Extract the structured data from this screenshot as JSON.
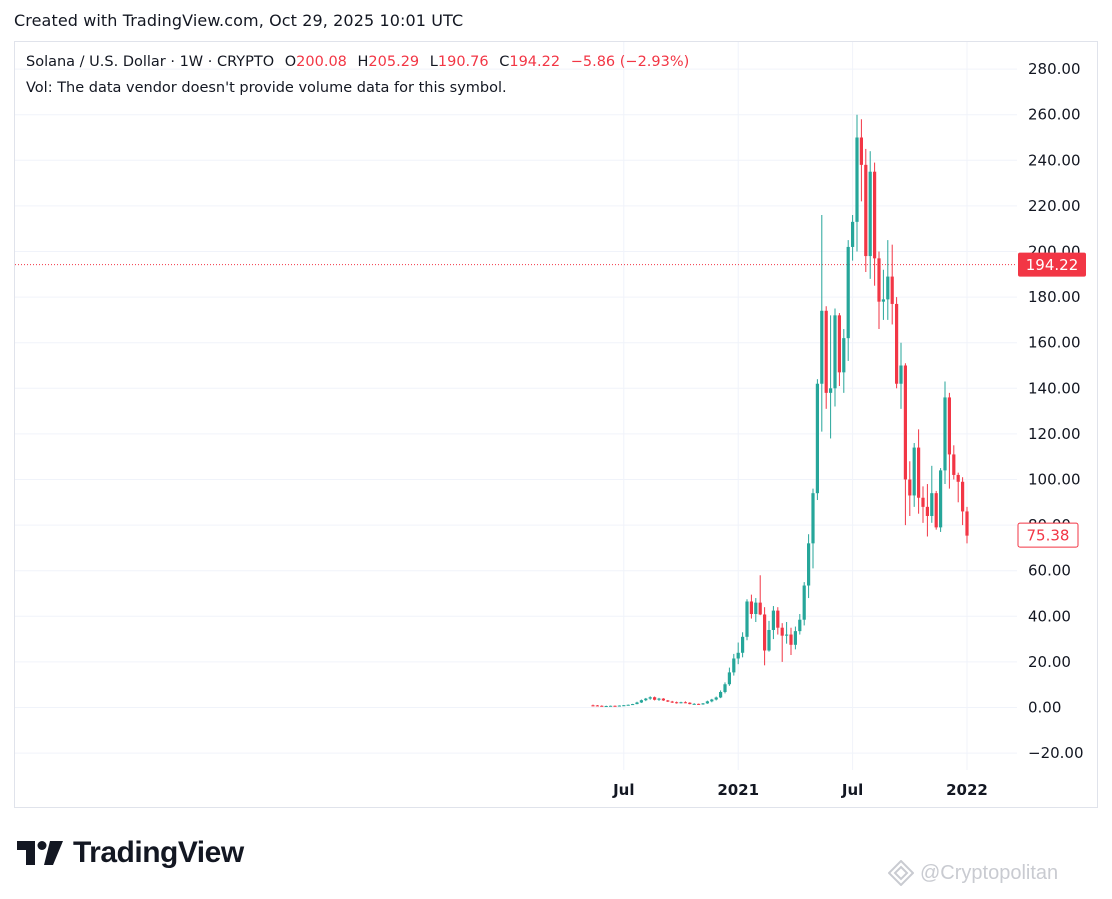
{
  "header": {
    "text": "Created with TradingView.com, Oct 29, 2025 10:01 UTC"
  },
  "legend": {
    "symbol": "Solana / U.S. Dollar · 1W · CRYPTO",
    "o_label": "O",
    "o_value": "200.08",
    "h_label": "H",
    "h_value": "205.29",
    "l_label": "L",
    "l_value": "190.76",
    "c_label": "C",
    "c_value": "194.22",
    "change": "−5.86 (−2.93%)",
    "vol_note": "Vol: The data vendor doesn't provide volume data for this symbol."
  },
  "price_badges": {
    "current": "194.22",
    "last": "75.38"
  },
  "branding": {
    "logo_text": "TradingView",
    "watermark": "@Cryptopolitan"
  },
  "colors": {
    "up": "#26a69a",
    "down": "#f23645",
    "grid": "#f0f3fa",
    "text": "#131722",
    "badge_red": "#f23645"
  },
  "chart_data": {
    "type": "candlestick",
    "title": "Solana / U.S. Dollar · 1W · CRYPTO",
    "y_ticks": [
      "280.00",
      "260.00",
      "240.00",
      "220.00",
      "200.00",
      "180.00",
      "160.00",
      "140.00",
      "120.00",
      "100.00",
      "80.00",
      "60.00",
      "40.00",
      "20.00",
      "0.00",
      "−20.00"
    ],
    "y_tick_values": [
      280,
      260,
      240,
      220,
      200,
      180,
      160,
      140,
      120,
      100,
      80,
      60,
      40,
      20,
      0,
      -20
    ],
    "ylim": [
      -20,
      280
    ],
    "x_ticks": [
      "Jul",
      "2021",
      "Jul",
      "2022"
    ],
    "x_tick_weeks": [
      7,
      33,
      59,
      85
    ],
    "current_price_line": 194.22,
    "last_price": 75.38,
    "grid": true,
    "candles": [
      {
        "o": 0.95,
        "h": 1.25,
        "l": 0.55,
        "c": 0.9
      },
      {
        "o": 0.9,
        "h": 1.1,
        "l": 0.65,
        "c": 0.75
      },
      {
        "o": 0.75,
        "h": 0.95,
        "l": 0.55,
        "c": 0.65
      },
      {
        "o": 0.65,
        "h": 0.8,
        "l": 0.5,
        "c": 0.65
      },
      {
        "o": 0.65,
        "h": 0.85,
        "l": 0.55,
        "c": 0.75
      },
      {
        "o": 0.75,
        "h": 0.9,
        "l": 0.6,
        "c": 0.7
      },
      {
        "o": 0.7,
        "h": 0.95,
        "l": 0.6,
        "c": 0.85
      },
      {
        "o": 0.85,
        "h": 1.1,
        "l": 0.8,
        "c": 1.0
      },
      {
        "o": 1.0,
        "h": 1.3,
        "l": 0.9,
        "c": 1.2
      },
      {
        "o": 1.2,
        "h": 1.6,
        "l": 1.1,
        "c": 1.5
      },
      {
        "o": 1.5,
        "h": 2.5,
        "l": 1.4,
        "c": 2.2
      },
      {
        "o": 2.2,
        "h": 3.5,
        "l": 2.0,
        "c": 3.2
      },
      {
        "o": 3.2,
        "h": 4.2,
        "l": 2.8,
        "c": 3.9
      },
      {
        "o": 3.9,
        "h": 4.9,
        "l": 3.4,
        "c": 4.5
      },
      {
        "o": 4.5,
        "h": 4.8,
        "l": 3.1,
        "c": 3.4
      },
      {
        "o": 3.4,
        "h": 4.2,
        "l": 2.9,
        "c": 3.9
      },
      {
        "o": 3.9,
        "h": 4.1,
        "l": 2.9,
        "c": 3.1
      },
      {
        "o": 3.1,
        "h": 3.3,
        "l": 2.4,
        "c": 2.6
      },
      {
        "o": 2.6,
        "h": 2.9,
        "l": 2.0,
        "c": 2.3
      },
      {
        "o": 2.3,
        "h": 2.6,
        "l": 1.7,
        "c": 1.9
      },
      {
        "o": 1.9,
        "h": 2.5,
        "l": 1.8,
        "c": 2.3
      },
      {
        "o": 2.3,
        "h": 2.7,
        "l": 1.9,
        "c": 2.1
      },
      {
        "o": 2.1,
        "h": 2.3,
        "l": 1.4,
        "c": 1.5
      },
      {
        "o": 1.5,
        "h": 1.9,
        "l": 1.3,
        "c": 1.6
      },
      {
        "o": 1.6,
        "h": 1.7,
        "l": 1.2,
        "c": 1.35
      },
      {
        "o": 1.35,
        "h": 2.0,
        "l": 1.2,
        "c": 1.8
      },
      {
        "o": 1.8,
        "h": 3.0,
        "l": 1.6,
        "c": 2.7
      },
      {
        "o": 2.7,
        "h": 3.8,
        "l": 2.3,
        "c": 3.5
      },
      {
        "o": 3.5,
        "h": 4.8,
        "l": 3.1,
        "c": 4.4
      },
      {
        "o": 4.4,
        "h": 7.5,
        "l": 4.1,
        "c": 6.8
      },
      {
        "o": 6.8,
        "h": 11.0,
        "l": 6.2,
        "c": 10.2
      },
      {
        "o": 10.2,
        "h": 17.5,
        "l": 9.5,
        "c": 15.4
      },
      {
        "o": 15.4,
        "h": 23.5,
        "l": 14.0,
        "c": 21.5
      },
      {
        "o": 21.5,
        "h": 28.5,
        "l": 19.0,
        "c": 24.0
      },
      {
        "o": 24.0,
        "h": 33.0,
        "l": 22.0,
        "c": 31.0
      },
      {
        "o": 31.0,
        "h": 47.5,
        "l": 29.5,
        "c": 46.5
      },
      {
        "o": 46.5,
        "h": 49.5,
        "l": 39.0,
        "c": 41.0
      },
      {
        "o": 41.0,
        "h": 48.0,
        "l": 37.5,
        "c": 46.0
      },
      {
        "o": 46.0,
        "h": 58.0,
        "l": 40.5,
        "c": 40.8
      },
      {
        "o": 40.8,
        "h": 44.0,
        "l": 18.5,
        "c": 25.0
      },
      {
        "o": 25.0,
        "h": 38.0,
        "l": 24.5,
        "c": 34.0
      },
      {
        "o": 34.0,
        "h": 44.5,
        "l": 30.0,
        "c": 42.5
      },
      {
        "o": 42.5,
        "h": 44.0,
        "l": 32.0,
        "c": 35.0
      },
      {
        "o": 35.0,
        "h": 37.0,
        "l": 20.0,
        "c": 31.5
      },
      {
        "o": 31.5,
        "h": 37.5,
        "l": 28.0,
        "c": 32.0
      },
      {
        "o": 32.0,
        "h": 35.0,
        "l": 23.0,
        "c": 27.5
      },
      {
        "o": 27.5,
        "h": 35.5,
        "l": 25.5,
        "c": 33.5
      },
      {
        "o": 33.5,
        "h": 41.0,
        "l": 32.0,
        "c": 38.5
      },
      {
        "o": 38.5,
        "h": 55.0,
        "l": 36.0,
        "c": 53.5
      },
      {
        "o": 53.5,
        "h": 76.0,
        "l": 48.0,
        "c": 72.0
      },
      {
        "o": 72.0,
        "h": 96.0,
        "l": 61.0,
        "c": 94.0
      },
      {
        "o": 94.0,
        "h": 144.0,
        "l": 91.0,
        "c": 142.0
      },
      {
        "o": 142.0,
        "h": 216.0,
        "l": 121.0,
        "c": 174.0
      },
      {
        "o": 174.0,
        "h": 176.0,
        "l": 131.0,
        "c": 138.0
      },
      {
        "o": 138.0,
        "h": 172.0,
        "l": 118.0,
        "c": 140.0
      },
      {
        "o": 140.0,
        "h": 175.0,
        "l": 132.0,
        "c": 172.0
      },
      {
        "o": 172.0,
        "h": 173.0,
        "l": 141.0,
        "c": 147.0
      },
      {
        "o": 147.0,
        "h": 166.0,
        "l": 138.0,
        "c": 162.0
      },
      {
        "o": 162.0,
        "h": 205.0,
        "l": 152.0,
        "c": 202.0
      },
      {
        "o": 202.0,
        "h": 216.0,
        "l": 196.0,
        "c": 213.0
      },
      {
        "o": 213.0,
        "h": 260.0,
        "l": 200.0,
        "c": 250.0
      },
      {
        "o": 250.0,
        "h": 258.0,
        "l": 222.0,
        "c": 238.0
      },
      {
        "o": 238.0,
        "h": 245.0,
        "l": 191.0,
        "c": 198.0
      },
      {
        "o": 198.0,
        "h": 244.0,
        "l": 188.0,
        "c": 235.0
      },
      {
        "o": 235.0,
        "h": 239.0,
        "l": 185.0,
        "c": 197.0
      },
      {
        "o": 197.0,
        "h": 200.0,
        "l": 166.0,
        "c": 178.0
      },
      {
        "o": 178.0,
        "h": 192.0,
        "l": 170.0,
        "c": 179.0
      },
      {
        "o": 179.0,
        "h": 205.0,
        "l": 170.0,
        "c": 189.0
      },
      {
        "o": 189.0,
        "h": 203.0,
        "l": 168.0,
        "c": 177.0
      },
      {
        "o": 177.0,
        "h": 180.0,
        "l": 140.0,
        "c": 142.0
      },
      {
        "o": 142.0,
        "h": 160.0,
        "l": 131.0,
        "c": 150.0
      },
      {
        "o": 150.0,
        "h": 151.0,
        "l": 80.0,
        "c": 100.0
      },
      {
        "o": 100.0,
        "h": 108.0,
        "l": 84.0,
        "c": 93.0
      },
      {
        "o": 93.0,
        "h": 116.0,
        "l": 88.0,
        "c": 114.0
      },
      {
        "o": 114.0,
        "h": 122.0,
        "l": 85.0,
        "c": 92.0
      },
      {
        "o": 92.0,
        "h": 97.0,
        "l": 81.0,
        "c": 88.0
      },
      {
        "o": 88.0,
        "h": 98.0,
        "l": 75.0,
        "c": 84.0
      },
      {
        "o": 84.0,
        "h": 106.0,
        "l": 81.0,
        "c": 94.0
      },
      {
        "o": 94.0,
        "h": 95.0,
        "l": 78.0,
        "c": 79.0
      },
      {
        "o": 79.0,
        "h": 105.0,
        "l": 77.0,
        "c": 104.0
      },
      {
        "o": 104.0,
        "h": 143.0,
        "l": 98.0,
        "c": 136.0
      },
      {
        "o": 136.0,
        "h": 138.0,
        "l": 96.0,
        "c": 111.0
      },
      {
        "o": 111.0,
        "h": 115.0,
        "l": 100.0,
        "c": 102.0
      },
      {
        "o": 102.0,
        "h": 103.0,
        "l": 90.0,
        "c": 99.0
      },
      {
        "o": 99.0,
        "h": 101.0,
        "l": 80.0,
        "c": 86.0
      },
      {
        "o": 86.0,
        "h": 88.0,
        "l": 72.0,
        "c": 75.38
      }
    ]
  }
}
